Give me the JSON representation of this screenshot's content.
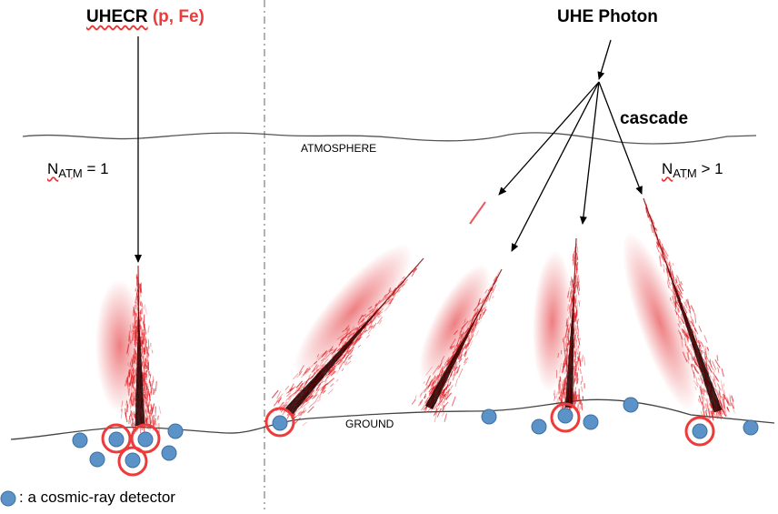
{
  "labels": {
    "uhecr": "UHECR",
    "uhecr_particles": "(p, Fe)",
    "photon": "UHE Photon",
    "cascade": "cascade",
    "atmosphere": "ATMOSPHERE",
    "ground": "GROUND",
    "natm_left_base": "N",
    "natm_left_sub": "ATM",
    "natm_left_rel": " = 1",
    "natm_right_base": "N",
    "natm_right_sub": "ATM",
    "natm_right_rel": " > 1",
    "legend": ": a cosmic-ray detector"
  },
  "colors": {
    "shower": "#e0151b",
    "shower_core": "#1a0000",
    "detector": "#5b93c9",
    "detector_stroke": "#3e6f9e",
    "highlight": "#ee3a3a",
    "line": "#555555"
  },
  "icons": {
    "detector": "blue-dot-icon",
    "triggered": "red-ring-icon"
  }
}
